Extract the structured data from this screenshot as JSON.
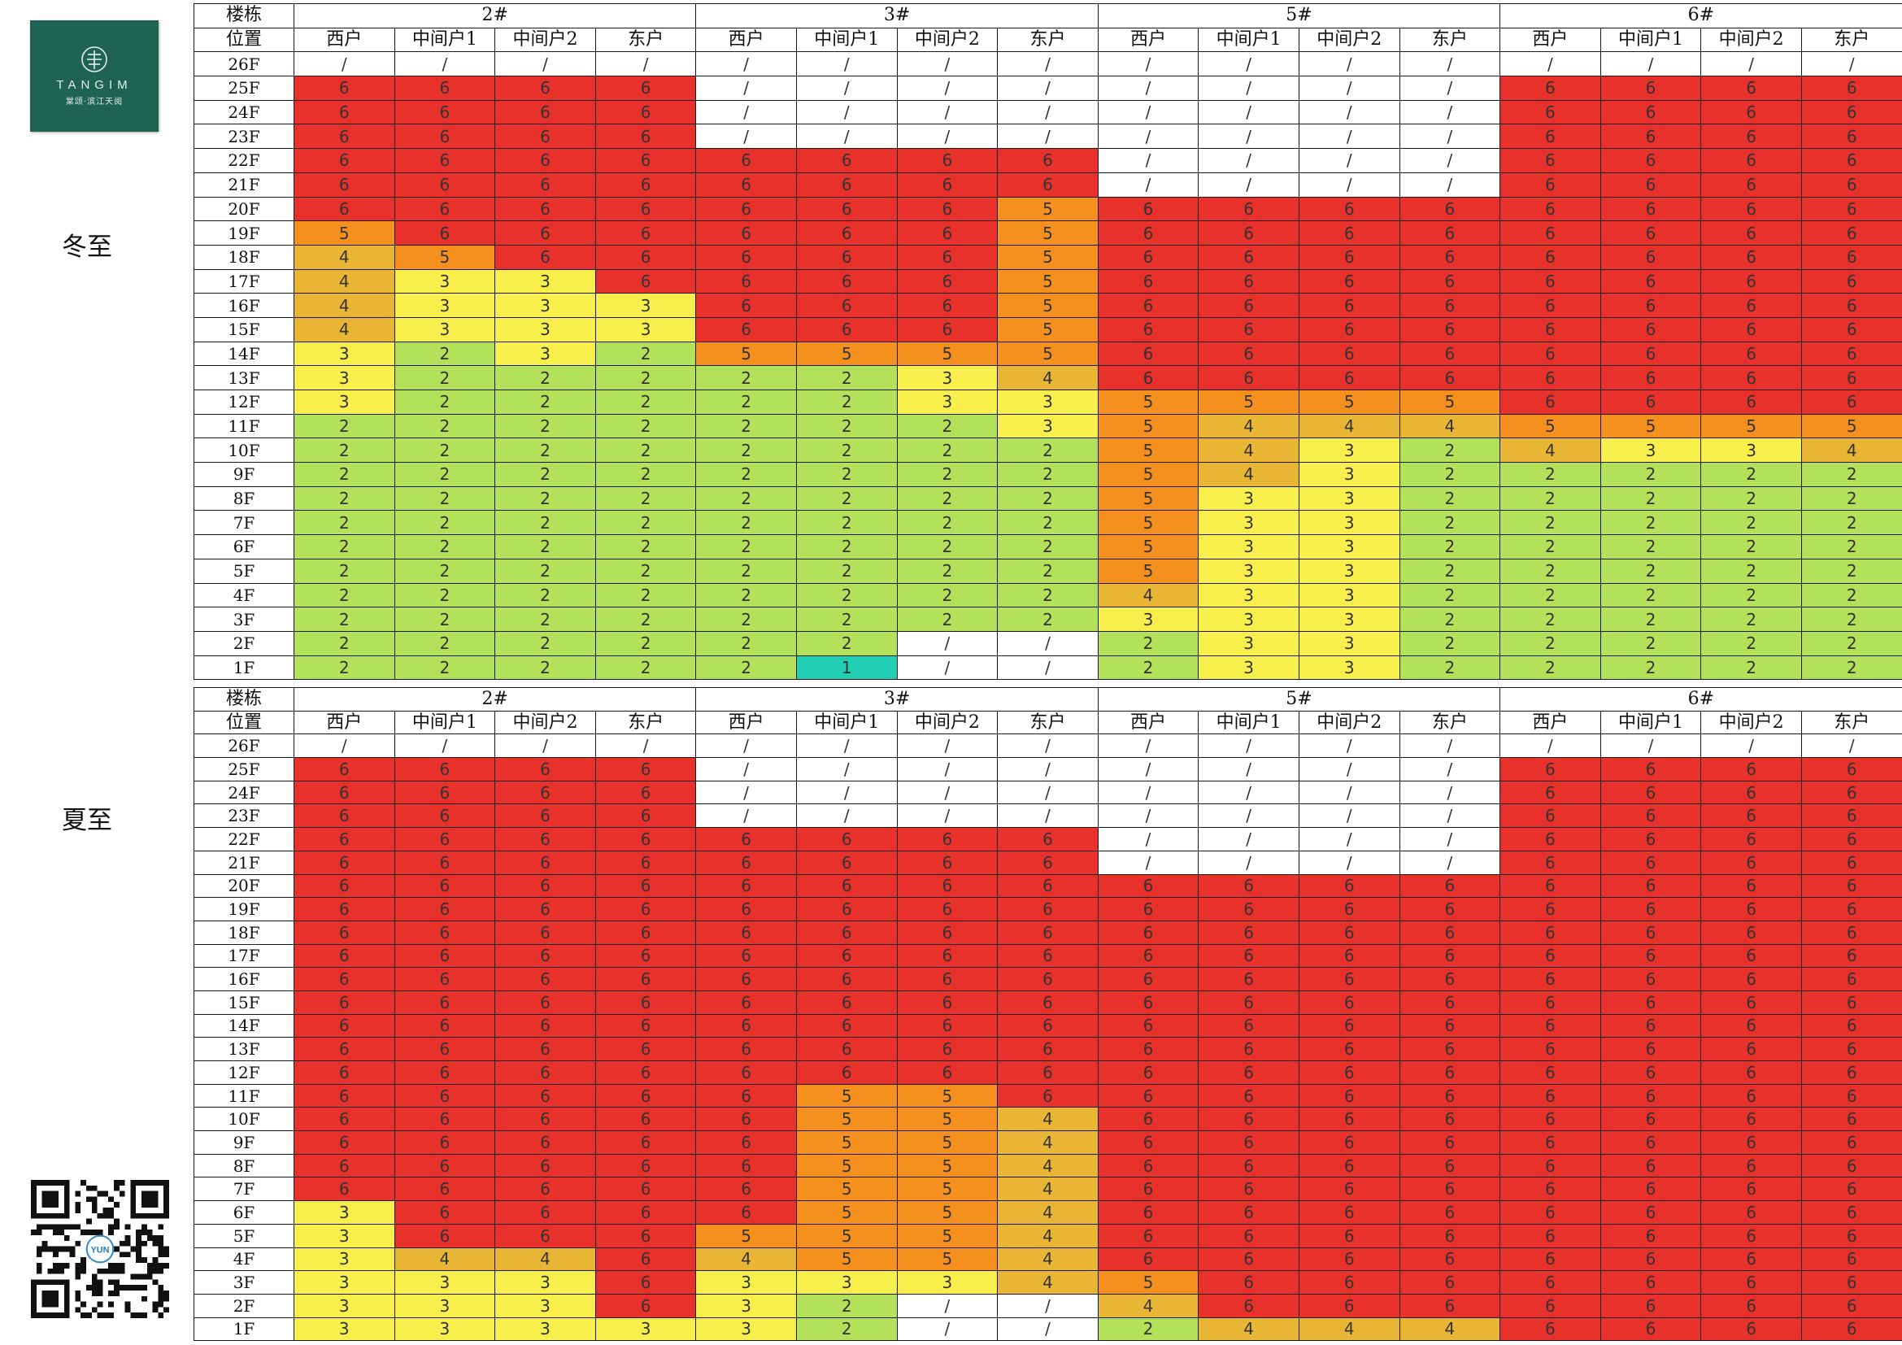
{
  "brand": {
    "name": "TANGIM",
    "sub": "棠颂·滨江天阅"
  },
  "colors": {
    "6": "#e8312a",
    "5": "#f5901f",
    "4": "#e9b534",
    "3": "#f8ee4c",
    "2": "#b4e15a",
    "1": "#22cfb4",
    "/": "#ffffff"
  },
  "sections": [
    {
      "label": "冬至",
      "header_building": "楼栋",
      "header_position": "位置",
      "buildings": [
        "2#",
        "3#",
        "5#",
        "6#"
      ],
      "units": [
        "西户",
        "中间户1",
        "中间户2",
        "东户"
      ],
      "rows": [
        {
          "floor": "26F",
          "cells": [
            "/",
            "/",
            "/",
            "/",
            "/",
            "/",
            "/",
            "/",
            "/",
            "/",
            "/",
            "/",
            "/",
            "/",
            "/",
            "/"
          ]
        },
        {
          "floor": "25F",
          "cells": [
            "6",
            "6",
            "6",
            "6",
            "/",
            "/",
            "/",
            "/",
            "/",
            "/",
            "/",
            "/",
            "6",
            "6",
            "6",
            "6"
          ]
        },
        {
          "floor": "24F",
          "cells": [
            "6",
            "6",
            "6",
            "6",
            "/",
            "/",
            "/",
            "/",
            "/",
            "/",
            "/",
            "/",
            "6",
            "6",
            "6",
            "6"
          ]
        },
        {
          "floor": "23F",
          "cells": [
            "6",
            "6",
            "6",
            "6",
            "/",
            "/",
            "/",
            "/",
            "/",
            "/",
            "/",
            "/",
            "6",
            "6",
            "6",
            "6"
          ]
        },
        {
          "floor": "22F",
          "cells": [
            "6",
            "6",
            "6",
            "6",
            "6",
            "6",
            "6",
            "6",
            "/",
            "/",
            "/",
            "/",
            "6",
            "6",
            "6",
            "6"
          ]
        },
        {
          "floor": "21F",
          "cells": [
            "6",
            "6",
            "6",
            "6",
            "6",
            "6",
            "6",
            "6",
            "/",
            "/",
            "/",
            "/",
            "6",
            "6",
            "6",
            "6"
          ]
        },
        {
          "floor": "20F",
          "cells": [
            "6",
            "6",
            "6",
            "6",
            "6",
            "6",
            "6",
            "5",
            "6",
            "6",
            "6",
            "6",
            "6",
            "6",
            "6",
            "6"
          ]
        },
        {
          "floor": "19F",
          "cells": [
            "5",
            "6",
            "6",
            "6",
            "6",
            "6",
            "6",
            "5",
            "6",
            "6",
            "6",
            "6",
            "6",
            "6",
            "6",
            "6"
          ]
        },
        {
          "floor": "18F",
          "cells": [
            "4",
            "5",
            "6",
            "6",
            "6",
            "6",
            "6",
            "5",
            "6",
            "6",
            "6",
            "6",
            "6",
            "6",
            "6",
            "6"
          ]
        },
        {
          "floor": "17F",
          "cells": [
            "4",
            "3",
            "3",
            "6",
            "6",
            "6",
            "6",
            "5",
            "6",
            "6",
            "6",
            "6",
            "6",
            "6",
            "6",
            "6"
          ]
        },
        {
          "floor": "16F",
          "cells": [
            "4",
            "3",
            "3",
            "3",
            "6",
            "6",
            "6",
            "5",
            "6",
            "6",
            "6",
            "6",
            "6",
            "6",
            "6",
            "6"
          ]
        },
        {
          "floor": "15F",
          "cells": [
            "4",
            "3",
            "3",
            "3",
            "6",
            "6",
            "6",
            "5",
            "6",
            "6",
            "6",
            "6",
            "6",
            "6",
            "6",
            "6"
          ]
        },
        {
          "floor": "14F",
          "cells": [
            "3",
            "2",
            "3",
            "2",
            "5",
            "5",
            "5",
            "5",
            "6",
            "6",
            "6",
            "6",
            "6",
            "6",
            "6",
            "6"
          ]
        },
        {
          "floor": "13F",
          "cells": [
            "3",
            "2",
            "2",
            "2",
            "2",
            "2",
            "3",
            "4",
            "6",
            "6",
            "6",
            "6",
            "6",
            "6",
            "6",
            "6"
          ]
        },
        {
          "floor": "12F",
          "cells": [
            "3",
            "2",
            "2",
            "2",
            "2",
            "2",
            "3",
            "3",
            "5",
            "5",
            "5",
            "5",
            "6",
            "6",
            "6",
            "6"
          ]
        },
        {
          "floor": "11F",
          "cells": [
            "2",
            "2",
            "2",
            "2",
            "2",
            "2",
            "2",
            "3",
            "5",
            "4",
            "4",
            "4",
            "5",
            "5",
            "5",
            "5"
          ]
        },
        {
          "floor": "10F",
          "cells": [
            "2",
            "2",
            "2",
            "2",
            "2",
            "2",
            "2",
            "2",
            "5",
            "4",
            "3",
            "2",
            "4",
            "3",
            "3",
            "4"
          ]
        },
        {
          "floor": "9F",
          "cells": [
            "2",
            "2",
            "2",
            "2",
            "2",
            "2",
            "2",
            "2",
            "5",
            "4",
            "3",
            "2",
            "2",
            "2",
            "2",
            "2"
          ]
        },
        {
          "floor": "8F",
          "cells": [
            "2",
            "2",
            "2",
            "2",
            "2",
            "2",
            "2",
            "2",
            "5",
            "3",
            "3",
            "2",
            "2",
            "2",
            "2",
            "2"
          ]
        },
        {
          "floor": "7F",
          "cells": [
            "2",
            "2",
            "2",
            "2",
            "2",
            "2",
            "2",
            "2",
            "5",
            "3",
            "3",
            "2",
            "2",
            "2",
            "2",
            "2"
          ]
        },
        {
          "floor": "6F",
          "cells": [
            "2",
            "2",
            "2",
            "2",
            "2",
            "2",
            "2",
            "2",
            "5",
            "3",
            "3",
            "2",
            "2",
            "2",
            "2",
            "2"
          ]
        },
        {
          "floor": "5F",
          "cells": [
            "2",
            "2",
            "2",
            "2",
            "2",
            "2",
            "2",
            "2",
            "5",
            "3",
            "3",
            "2",
            "2",
            "2",
            "2",
            "2"
          ]
        },
        {
          "floor": "4F",
          "cells": [
            "2",
            "2",
            "2",
            "2",
            "2",
            "2",
            "2",
            "2",
            "4",
            "3",
            "3",
            "2",
            "2",
            "2",
            "2",
            "2"
          ]
        },
        {
          "floor": "3F",
          "cells": [
            "2",
            "2",
            "2",
            "2",
            "2",
            "2",
            "2",
            "2",
            "3",
            "3",
            "3",
            "2",
            "2",
            "2",
            "2",
            "2"
          ]
        },
        {
          "floor": "2F",
          "cells": [
            "2",
            "2",
            "2",
            "2",
            "2",
            "2",
            "/",
            "/",
            "2",
            "3",
            "3",
            "2",
            "2",
            "2",
            "2",
            "2"
          ]
        },
        {
          "floor": "1F",
          "cells": [
            "2",
            "2",
            "2",
            "2",
            "2",
            "1",
            "/",
            "/",
            "2",
            "3",
            "3",
            "2",
            "2",
            "2",
            "2",
            "2"
          ]
        }
      ]
    },
    {
      "label": "夏至",
      "header_building": "楼栋",
      "header_position": "位置",
      "buildings": [
        "2#",
        "3#",
        "5#",
        "6#"
      ],
      "units": [
        "西户",
        "中间户1",
        "中间户2",
        "东户"
      ],
      "rows": [
        {
          "floor": "26F",
          "cells": [
            "/",
            "/",
            "/",
            "/",
            "/",
            "/",
            "/",
            "/",
            "/",
            "/",
            "/",
            "/",
            "/",
            "/",
            "/",
            "/"
          ]
        },
        {
          "floor": "25F",
          "cells": [
            "6",
            "6",
            "6",
            "6",
            "/",
            "/",
            "/",
            "/",
            "/",
            "/",
            "/",
            "/",
            "6",
            "6",
            "6",
            "6"
          ]
        },
        {
          "floor": "24F",
          "cells": [
            "6",
            "6",
            "6",
            "6",
            "/",
            "/",
            "/",
            "/",
            "/",
            "/",
            "/",
            "/",
            "6",
            "6",
            "6",
            "6"
          ]
        },
        {
          "floor": "23F",
          "cells": [
            "6",
            "6",
            "6",
            "6",
            "/",
            "/",
            "/",
            "/",
            "/",
            "/",
            "/",
            "/",
            "6",
            "6",
            "6",
            "6"
          ]
        },
        {
          "floor": "22F",
          "cells": [
            "6",
            "6",
            "6",
            "6",
            "6",
            "6",
            "6",
            "6",
            "/",
            "/",
            "/",
            "/",
            "6",
            "6",
            "6",
            "6"
          ]
        },
        {
          "floor": "21F",
          "cells": [
            "6",
            "6",
            "6",
            "6",
            "6",
            "6",
            "6",
            "6",
            "/",
            "/",
            "/",
            "/",
            "6",
            "6",
            "6",
            "6"
          ]
        },
        {
          "floor": "20F",
          "cells": [
            "6",
            "6",
            "6",
            "6",
            "6",
            "6",
            "6",
            "6",
            "6",
            "6",
            "6",
            "6",
            "6",
            "6",
            "6",
            "6"
          ]
        },
        {
          "floor": "19F",
          "cells": [
            "6",
            "6",
            "6",
            "6",
            "6",
            "6",
            "6",
            "6",
            "6",
            "6",
            "6",
            "6",
            "6",
            "6",
            "6",
            "6"
          ]
        },
        {
          "floor": "18F",
          "cells": [
            "6",
            "6",
            "6",
            "6",
            "6",
            "6",
            "6",
            "6",
            "6",
            "6",
            "6",
            "6",
            "6",
            "6",
            "6",
            "6"
          ]
        },
        {
          "floor": "17F",
          "cells": [
            "6",
            "6",
            "6",
            "6",
            "6",
            "6",
            "6",
            "6",
            "6",
            "6",
            "6",
            "6",
            "6",
            "6",
            "6",
            "6"
          ]
        },
        {
          "floor": "16F",
          "cells": [
            "6",
            "6",
            "6",
            "6",
            "6",
            "6",
            "6",
            "6",
            "6",
            "6",
            "6",
            "6",
            "6",
            "6",
            "6",
            "6"
          ]
        },
        {
          "floor": "15F",
          "cells": [
            "6",
            "6",
            "6",
            "6",
            "6",
            "6",
            "6",
            "6",
            "6",
            "6",
            "6",
            "6",
            "6",
            "6",
            "6",
            "6"
          ]
        },
        {
          "floor": "14F",
          "cells": [
            "6",
            "6",
            "6",
            "6",
            "6",
            "6",
            "6",
            "6",
            "6",
            "6",
            "6",
            "6",
            "6",
            "6",
            "6",
            "6"
          ]
        },
        {
          "floor": "13F",
          "cells": [
            "6",
            "6",
            "6",
            "6",
            "6",
            "6",
            "6",
            "6",
            "6",
            "6",
            "6",
            "6",
            "6",
            "6",
            "6",
            "6"
          ]
        },
        {
          "floor": "12F",
          "cells": [
            "6",
            "6",
            "6",
            "6",
            "6",
            "6",
            "6",
            "6",
            "6",
            "6",
            "6",
            "6",
            "6",
            "6",
            "6",
            "6"
          ]
        },
        {
          "floor": "11F",
          "cells": [
            "6",
            "6",
            "6",
            "6",
            "6",
            "5",
            "5",
            "6",
            "6",
            "6",
            "6",
            "6",
            "6",
            "6",
            "6",
            "6"
          ]
        },
        {
          "floor": "10F",
          "cells": [
            "6",
            "6",
            "6",
            "6",
            "6",
            "5",
            "5",
            "4",
            "6",
            "6",
            "6",
            "6",
            "6",
            "6",
            "6",
            "6"
          ]
        },
        {
          "floor": "9F",
          "cells": [
            "6",
            "6",
            "6",
            "6",
            "6",
            "5",
            "5",
            "4",
            "6",
            "6",
            "6",
            "6",
            "6",
            "6",
            "6",
            "6"
          ]
        },
        {
          "floor": "8F",
          "cells": [
            "6",
            "6",
            "6",
            "6",
            "6",
            "5",
            "5",
            "4",
            "6",
            "6",
            "6",
            "6",
            "6",
            "6",
            "6",
            "6"
          ]
        },
        {
          "floor": "7F",
          "cells": [
            "6",
            "6",
            "6",
            "6",
            "6",
            "5",
            "5",
            "4",
            "6",
            "6",
            "6",
            "6",
            "6",
            "6",
            "6",
            "6"
          ]
        },
        {
          "floor": "6F",
          "cells": [
            "3",
            "6",
            "6",
            "6",
            "6",
            "5",
            "5",
            "4",
            "6",
            "6",
            "6",
            "6",
            "6",
            "6",
            "6",
            "6"
          ]
        },
        {
          "floor": "5F",
          "cells": [
            "3",
            "6",
            "6",
            "6",
            "5",
            "5",
            "5",
            "4",
            "6",
            "6",
            "6",
            "6",
            "6",
            "6",
            "6",
            "6"
          ]
        },
        {
          "floor": "4F",
          "cells": [
            "3",
            "4",
            "4",
            "6",
            "4",
            "5",
            "5",
            "4",
            "6",
            "6",
            "6",
            "6",
            "6",
            "6",
            "6",
            "6"
          ]
        },
        {
          "floor": "3F",
          "cells": [
            "3",
            "3",
            "3",
            "6",
            "3",
            "3",
            "3",
            "4",
            "5",
            "6",
            "6",
            "6",
            "6",
            "6",
            "6",
            "6"
          ]
        },
        {
          "floor": "2F",
          "cells": [
            "3",
            "3",
            "3",
            "6",
            "3",
            "2",
            "/",
            "/",
            "4",
            "6",
            "6",
            "6",
            "6",
            "6",
            "6",
            "6"
          ]
        },
        {
          "floor": "1F",
          "cells": [
            "3",
            "3",
            "3",
            "3",
            "3",
            "2",
            "/",
            "/",
            "2",
            "4",
            "4",
            "4",
            "6",
            "6",
            "6",
            "6"
          ]
        }
      ]
    }
  ]
}
